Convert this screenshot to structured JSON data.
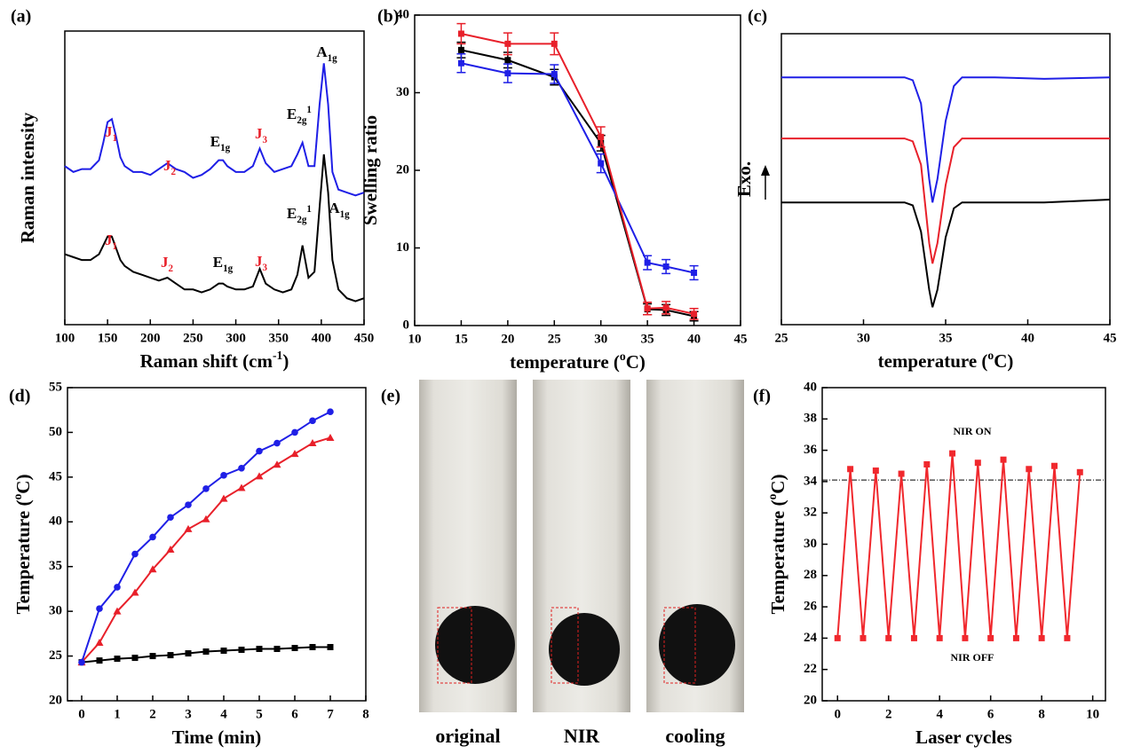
{
  "chart_data": [
    {
      "type": "line",
      "panel_label": "(a)",
      "xlabel": {
        "before": "Raman shift (cm",
        "sup": "-1",
        "after": ")"
      },
      "ylabel": "Raman intensity",
      "xlim": [
        100,
        450
      ],
      "xticks": [
        100,
        150,
        200,
        250,
        300,
        350,
        400,
        450
      ],
      "ylim": [
        0,
        100
      ],
      "x": [
        100,
        110,
        120,
        130,
        140,
        145,
        150,
        155,
        160,
        165,
        170,
        180,
        190,
        200,
        210,
        220,
        230,
        240,
        250,
        260,
        270,
        280,
        285,
        290,
        300,
        310,
        320,
        328,
        335,
        345,
        355,
        365,
        372,
        378,
        385,
        392,
        398,
        403,
        408,
        413,
        420,
        430,
        440,
        450
      ],
      "series": [
        {
          "color": "#1f1fe6",
          "values": [
            54,
            52,
            53,
            53,
            56,
            62,
            69,
            70,
            64,
            57,
            54,
            52,
            52,
            51,
            53,
            55,
            53,
            52,
            50,
            51,
            53,
            56,
            56,
            54,
            52,
            52,
            54,
            60,
            55,
            52,
            53,
            54,
            58,
            62,
            54,
            54,
            75,
            89,
            75,
            52,
            46,
            45,
            44,
            45
          ]
        },
        {
          "color": "#000000",
          "values": [
            24,
            23,
            22,
            22,
            24,
            27,
            30,
            30,
            26,
            22,
            20,
            18,
            17,
            16,
            15,
            16,
            14,
            12,
            12,
            11,
            12,
            14,
            14,
            13,
            12,
            12,
            13,
            19,
            14,
            12,
            11,
            12,
            17,
            27,
            16,
            18,
            40,
            58,
            45,
            22,
            12,
            9,
            8,
            9
          ]
        }
      ],
      "annotations": [
        {
          "base": "J",
          "sub": "1",
          "color": "#e8202a"
        },
        {
          "base": "J",
          "sub": "2",
          "color": "#e8202a"
        },
        {
          "base": "E",
          "sub": "1g",
          "color": "#000000"
        },
        {
          "base": "J",
          "sub": "3",
          "color": "#e8202a"
        },
        {
          "base": "E",
          "sub": "2g",
          "sup": "1",
          "color": "#000000"
        },
        {
          "base": "A",
          "sub": "1g",
          "color": "#000000"
        },
        {
          "base": "J",
          "sub": "1",
          "color": "#e8202a"
        },
        {
          "base": "J",
          "sub": "2",
          "color": "#e8202a"
        },
        {
          "base": "E",
          "sub": "1g",
          "color": "#000000"
        },
        {
          "base": "J",
          "sub": "3",
          "color": "#e8202a"
        },
        {
          "base": "E",
          "sub": "2g",
          "sup": "1",
          "color": "#000000"
        },
        {
          "base": "A",
          "sub": "1g",
          "color": "#000000"
        }
      ]
    },
    {
      "type": "line",
      "panel_label": "(b)",
      "xlabel": {
        "before": "temperature (",
        "sup": "o",
        "after": "C)"
      },
      "ylabel": "Swelling ratio",
      "xlim": [
        10,
        45
      ],
      "xticks": [
        10,
        15,
        20,
        25,
        30,
        35,
        40,
        45
      ],
      "ylim": [
        0,
        40
      ],
      "yticks": [
        0,
        10,
        20,
        30,
        40
      ],
      "x": [
        15,
        20,
        25,
        30,
        35,
        37,
        40
      ],
      "series": [
        {
          "color": "#000000",
          "marker": "square",
          "values": [
            35.5,
            34.2,
            32.0,
            23.5,
            2.1,
            2.0,
            1.2
          ],
          "errors": [
            1.0,
            1.0,
            1.0,
            1.0,
            0.7,
            0.7,
            0.6
          ]
        },
        {
          "color": "#1f1fe6",
          "marker": "square",
          "values": [
            33.8,
            32.5,
            32.4,
            20.9,
            8.1,
            7.6,
            6.8
          ],
          "errors": [
            1.2,
            1.2,
            1.2,
            1.2,
            0.9,
            0.9,
            0.9
          ]
        },
        {
          "color": "#e8202a",
          "marker": "square",
          "values": [
            37.6,
            36.3,
            36.3,
            24.3,
            2.2,
            2.3,
            1.5
          ],
          "errors": [
            1.3,
            1.4,
            1.4,
            1.3,
            0.8,
            0.8,
            0.7
          ]
        }
      ]
    },
    {
      "type": "line",
      "panel_label": "(c)",
      "xlabel": {
        "before": "temperature (",
        "sup": "o",
        "after": "C)"
      },
      "ylabel": "Exo.",
      "xlim": [
        25,
        45
      ],
      "xticks": [
        25,
        30,
        35,
        40,
        45
      ],
      "ylim": [
        0,
        100
      ],
      "x": [
        25,
        28,
        31,
        32.5,
        33,
        33.5,
        34,
        34.2,
        34.5,
        35,
        35.5,
        36,
        38,
        41,
        45
      ],
      "series": [
        {
          "color": "#1f1fe6",
          "values": [
            85,
            85,
            85,
            85,
            84,
            76,
            50,
            42,
            50,
            70,
            82,
            85,
            85,
            84.5,
            85
          ]
        },
        {
          "color": "#e8202a",
          "values": [
            64,
            64,
            64,
            64,
            63,
            55,
            28,
            21,
            28,
            48,
            61,
            64,
            64,
            64,
            64
          ]
        },
        {
          "color": "#000000",
          "values": [
            42,
            42,
            42,
            42,
            41,
            32,
            12,
            6,
            12,
            30,
            40,
            42,
            42,
            42,
            43
          ]
        }
      ]
    },
    {
      "type": "line",
      "panel_label": "(d)",
      "xlabel": {
        "before": "Time (min)"
      },
      "ylabel": {
        "before": "Temperature (",
        "sup": "o",
        "after": "C)"
      },
      "xlim": [
        -0.4,
        8
      ],
      "xticks": [
        0,
        1,
        2,
        3,
        4,
        5,
        6,
        7,
        8
      ],
      "ylim": [
        20,
        55
      ],
      "yticks": [
        20,
        25,
        30,
        35,
        40,
        45,
        50,
        55
      ],
      "x": [
        0,
        0.5,
        1,
        1.5,
        2,
        2.5,
        3,
        3.5,
        4,
        4.5,
        5,
        5.5,
        6,
        6.5,
        7
      ],
      "series": [
        {
          "color": "#000000",
          "marker": "square",
          "values": [
            24.3,
            24.5,
            24.7,
            24.8,
            25.0,
            25.1,
            25.3,
            25.5,
            25.6,
            25.7,
            25.8,
            25.8,
            25.9,
            26.0,
            26.0
          ]
        },
        {
          "color": "#e8202a",
          "marker": "triangle",
          "values": [
            24.3,
            26.5,
            30.0,
            32.1,
            34.7,
            36.9,
            39.2,
            40.3,
            42.6,
            43.8,
            45.1,
            46.4,
            47.6,
            48.8,
            49.4
          ]
        },
        {
          "color": "#1f1fe6",
          "marker": "circle",
          "values": [
            24.3,
            30.3,
            32.7,
            36.4,
            38.3,
            40.5,
            41.9,
            43.7,
            45.2,
            46.0,
            47.9,
            48.8,
            50.0,
            51.3,
            52.3
          ]
        }
      ]
    },
    {
      "type": "line",
      "panel_label": "(f)",
      "xlabel": {
        "before": "Laser cycles"
      },
      "ylabel": {
        "before": "Temperature (",
        "sup": "o",
        "after": "C)"
      },
      "xlim": [
        -0.6,
        10.5
      ],
      "xticks": [
        0,
        2,
        4,
        6,
        8,
        10
      ],
      "ylim": [
        20,
        40
      ],
      "yticks": [
        20,
        22,
        24,
        26,
        28,
        30,
        32,
        34,
        36,
        38,
        40
      ],
      "x": [
        0,
        0.5,
        1,
        1.5,
        2,
        2.5,
        3,
        3.5,
        4,
        4.5,
        5,
        5.5,
        6,
        6.5,
        7,
        7.5,
        8,
        8.5,
        9,
        9.5
      ],
      "series": [
        {
          "color": "#f0282d",
          "marker": "square",
          "values": [
            24,
            34.8,
            24,
            34.7,
            24,
            34.5,
            24,
            35.1,
            24,
            35.8,
            24,
            35.2,
            24,
            35.4,
            24,
            34.8,
            24,
            35.0,
            24,
            34.6
          ]
        }
      ],
      "reference_line": 34.1,
      "annotations": [
        "NIR ON",
        "NIR OFF"
      ]
    }
  ],
  "photo": {
    "panel_label": "(e)",
    "captions": [
      "original",
      "NIR",
      "cooling"
    ]
  }
}
